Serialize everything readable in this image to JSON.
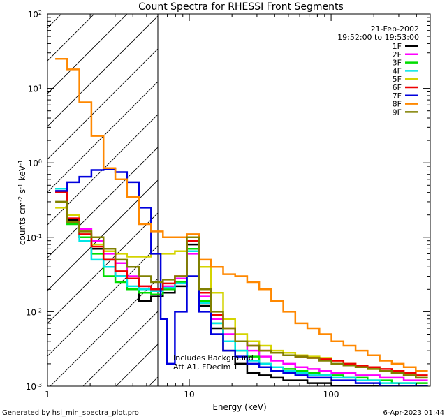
{
  "chart_data": {
    "type": "line",
    "title": "Count Spectra for RHESSI Front Segments",
    "xlabel": "Energy (keV)",
    "ylabel": "counts cm",
    "ylabel_sup1": "-2",
    "ylabel_mid": " s",
    "ylabel_sup2": "-1",
    "ylabel_end": " keV",
    "ylabel_sup3": "-1",
    "xscale": "log",
    "yscale": "log",
    "xlim": [
      1,
      500
    ],
    "ylim": [
      0.001,
      100
    ],
    "x_ticks": [
      {
        "value": 1,
        "label": "1"
      },
      {
        "value": 10,
        "label": "10"
      },
      {
        "value": 100,
        "label": "100"
      }
    ],
    "y_ticks": [
      {
        "value": 0.001,
        "base": "10",
        "exp": "-3"
      },
      {
        "value": 0.01,
        "base": "10",
        "exp": "-2"
      },
      {
        "value": 0.1,
        "base": "10",
        "exp": "-1"
      },
      {
        "value": 1,
        "base": "10",
        "exp": "0"
      },
      {
        "value": 10,
        "base": "10",
        "exp": "1"
      },
      {
        "value": 100,
        "base": "10",
        "exp": "2"
      }
    ],
    "date": "21-Feb-2002",
    "time_range": "19:52:00 to 19:53:00",
    "threshold_energy_kev": 6,
    "hatched_below_threshold": true,
    "annotation_line1": "Includes Background",
    "annotation_line2": "Att A1, FDecim 1",
    "series": [
      {
        "name": "1F",
        "color": "#000000",
        "data": [
          [
            1.25,
            0.4
          ],
          [
            1.52,
            0.17
          ],
          [
            1.85,
            0.1
          ],
          [
            2.25,
            0.07
          ],
          [
            2.74,
            0.05
          ],
          [
            3.3,
            0.03
          ],
          [
            4.0,
            0.02
          ],
          [
            4.9,
            0.014
          ],
          [
            5.9,
            0.016
          ],
          [
            7.2,
            0.018
          ],
          [
            8.7,
            0.022
          ],
          [
            10.6,
            0.08
          ],
          [
            12.9,
            0.012
          ],
          [
            15.7,
            0.006
          ],
          [
            19.1,
            0.003
          ],
          [
            23.2,
            0.002
          ],
          [
            28.2,
            0.0015
          ],
          [
            34.3,
            0.0014
          ],
          [
            41.7,
            0.0013
          ],
          [
            50.7,
            0.0012
          ],
          [
            61.7,
            0.0012
          ],
          [
            75,
            0.0011
          ],
          [
            91.2,
            0.0011
          ],
          [
            110.9,
            0.001
          ],
          [
            134.9,
            0.001
          ],
          [
            164,
            0.001
          ],
          [
            199.5,
            0.001
          ],
          [
            242.6,
            0.001
          ],
          [
            295,
            0.001
          ],
          [
            358.7,
            0.001
          ],
          [
            436.2,
            0.001
          ]
        ]
      },
      {
        "name": "2F",
        "color": "#ff00ff",
        "data": [
          [
            1.25,
            0.4
          ],
          [
            1.52,
            0.18
          ],
          [
            1.85,
            0.13
          ],
          [
            2.25,
            0.09
          ],
          [
            2.74,
            0.06
          ],
          [
            3.3,
            0.045
          ],
          [
            4.0,
            0.03
          ],
          [
            4.9,
            0.022
          ],
          [
            5.9,
            0.02
          ],
          [
            7.2,
            0.022
          ],
          [
            8.7,
            0.028
          ],
          [
            10.6,
            0.06
          ],
          [
            12.9,
            0.016
          ],
          [
            15.7,
            0.008
          ],
          [
            19.1,
            0.005
          ],
          [
            23.2,
            0.004
          ],
          [
            28.2,
            0.003
          ],
          [
            34.3,
            0.0025
          ],
          [
            41.7,
            0.0022
          ],
          [
            50.7,
            0.002
          ],
          [
            61.7,
            0.0018
          ],
          [
            75,
            0.0017
          ],
          [
            91.2,
            0.0016
          ],
          [
            110.9,
            0.0015
          ],
          [
            134.9,
            0.0015
          ],
          [
            164,
            0.0014
          ],
          [
            199.5,
            0.0014
          ],
          [
            242.6,
            0.0013
          ],
          [
            295,
            0.0013
          ],
          [
            358.7,
            0.0012
          ],
          [
            436.2,
            0.0012
          ]
        ]
      },
      {
        "name": "3F",
        "color": "#00dd00",
        "data": [
          [
            1.25,
            0.45
          ],
          [
            1.52,
            0.15
          ],
          [
            1.85,
            0.1
          ],
          [
            2.25,
            0.06
          ],
          [
            2.74,
            0.03
          ],
          [
            3.3,
            0.025
          ],
          [
            4.0,
            0.02
          ],
          [
            4.9,
            0.018
          ],
          [
            5.9,
            0.017
          ],
          [
            7.2,
            0.02
          ],
          [
            8.7,
            0.025
          ],
          [
            10.6,
            0.07
          ],
          [
            12.9,
            0.014
          ],
          [
            15.7,
            0.007
          ],
          [
            19.1,
            0.004
          ],
          [
            23.2,
            0.003
          ],
          [
            28.2,
            0.0025
          ],
          [
            34.3,
            0.002
          ],
          [
            41.7,
            0.0018
          ],
          [
            50.7,
            0.0017
          ],
          [
            61.7,
            0.0016
          ],
          [
            75,
            0.0015
          ],
          [
            91.2,
            0.0014
          ],
          [
            110.9,
            0.0014
          ],
          [
            134.9,
            0.0013
          ],
          [
            164,
            0.0013
          ],
          [
            199.5,
            0.0012
          ],
          [
            242.6,
            0.0012
          ],
          [
            295,
            0.0011
          ],
          [
            358.7,
            0.0011
          ],
          [
            436.2,
            0.0011
          ]
        ]
      },
      {
        "name": "4F",
        "color": "#00e5e5",
        "data": [
          [
            1.25,
            0.45
          ],
          [
            1.52,
            0.16
          ],
          [
            1.85,
            0.09
          ],
          [
            2.25,
            0.05
          ],
          [
            2.74,
            0.04
          ],
          [
            3.3,
            0.03
          ],
          [
            4.0,
            0.022
          ],
          [
            4.9,
            0.02
          ],
          [
            5.9,
            0.019
          ],
          [
            7.2,
            0.021
          ],
          [
            8.7,
            0.024
          ],
          [
            10.6,
            0.065
          ],
          [
            12.9,
            0.013
          ],
          [
            15.7,
            0.007
          ],
          [
            19.1,
            0.004
          ],
          [
            23.2,
            0.003
          ],
          [
            28.2,
            0.0022
          ],
          [
            34.3,
            0.002
          ],
          [
            41.7,
            0.0018
          ],
          [
            50.7,
            0.0016
          ],
          [
            61.7,
            0.0015
          ],
          [
            75,
            0.0014
          ],
          [
            91.2,
            0.0014
          ],
          [
            110.9,
            0.0013
          ],
          [
            134.9,
            0.0013
          ],
          [
            164,
            0.0012
          ],
          [
            199.5,
            0.0012
          ],
          [
            242.6,
            0.0011
          ],
          [
            295,
            0.0011
          ],
          [
            358.7,
            0.0011
          ],
          [
            436.2,
            0.001
          ]
        ]
      },
      {
        "name": "5F",
        "color": "#d4d400",
        "data": [
          [
            1.25,
            0.25
          ],
          [
            1.52,
            0.2
          ],
          [
            1.85,
            0.12
          ],
          [
            2.25,
            0.08
          ],
          [
            2.74,
            0.065
          ],
          [
            3.3,
            0.06
          ],
          [
            4.0,
            0.055
          ],
          [
            4.9,
            0.055
          ],
          [
            5.9,
            0.06
          ],
          [
            7.2,
            0.06
          ],
          [
            8.7,
            0.065
          ],
          [
            10.6,
            0.09
          ],
          [
            12.9,
            0.04
          ],
          [
            15.7,
            0.018
          ],
          [
            19.1,
            0.008
          ],
          [
            23.2,
            0.005
          ],
          [
            28.2,
            0.004
          ],
          [
            34.3,
            0.0035
          ],
          [
            41.7,
            0.003
          ],
          [
            50.7,
            0.0028
          ],
          [
            61.7,
            0.0026
          ],
          [
            75,
            0.0025
          ],
          [
            91.2,
            0.0024
          ],
          [
            110.9,
            0.0022
          ],
          [
            134.9,
            0.002
          ],
          [
            164,
            0.0018
          ],
          [
            199.5,
            0.0017
          ],
          [
            242.6,
            0.0016
          ],
          [
            295,
            0.0015
          ],
          [
            358.7,
            0.0014
          ],
          [
            436.2,
            0.0013
          ]
        ]
      },
      {
        "name": "6F",
        "color": "#ee0000",
        "data": [
          [
            1.25,
            0.4
          ],
          [
            1.52,
            0.18
          ],
          [
            1.85,
            0.11
          ],
          [
            2.25,
            0.075
          ],
          [
            2.74,
            0.05
          ],
          [
            3.3,
            0.035
          ],
          [
            4.0,
            0.028
          ],
          [
            4.9,
            0.022
          ],
          [
            5.9,
            0.02
          ],
          [
            7.2,
            0.024
          ],
          [
            8.7,
            0.03
          ],
          [
            10.6,
            0.09
          ],
          [
            12.9,
            0.018
          ],
          [
            15.7,
            0.009
          ],
          [
            19.1,
            0.006
          ],
          [
            23.2,
            0.004
          ],
          [
            28.2,
            0.0035
          ],
          [
            34.3,
            0.003
          ],
          [
            41.7,
            0.0028
          ],
          [
            50.7,
            0.0026
          ],
          [
            61.7,
            0.0025
          ],
          [
            75,
            0.0024
          ],
          [
            91.2,
            0.0023
          ],
          [
            110.9,
            0.0022
          ],
          [
            134.9,
            0.002
          ],
          [
            164,
            0.0019
          ],
          [
            199.5,
            0.0018
          ],
          [
            242.6,
            0.0017
          ],
          [
            295,
            0.0016
          ],
          [
            358.7,
            0.0015
          ],
          [
            436.2,
            0.0014
          ]
        ]
      },
      {
        "name": "7F",
        "color": "#0000dd",
        "data": [
          [
            1.25,
            0.42
          ],
          [
            1.52,
            0.55
          ],
          [
            1.85,
            0.65
          ],
          [
            2.25,
            0.8
          ],
          [
            2.74,
            0.83
          ],
          [
            3.3,
            0.75
          ],
          [
            4.0,
            0.55
          ],
          [
            4.9,
            0.25
          ],
          [
            5.9,
            0.06
          ],
          [
            6.7,
            0.008
          ],
          [
            7.2,
            0.002
          ],
          [
            8.7,
            0.01
          ],
          [
            10.6,
            0.03
          ],
          [
            12.9,
            0.01
          ],
          [
            15.7,
            0.005
          ],
          [
            19.1,
            0.003
          ],
          [
            23.2,
            0.0025
          ],
          [
            28.2,
            0.002
          ],
          [
            34.3,
            0.0018
          ],
          [
            41.7,
            0.0016
          ],
          [
            50.7,
            0.0015
          ],
          [
            61.7,
            0.0014
          ],
          [
            75,
            0.0013
          ],
          [
            91.2,
            0.0013
          ],
          [
            110.9,
            0.0012
          ],
          [
            134.9,
            0.0012
          ],
          [
            164,
            0.0011
          ],
          [
            199.5,
            0.0011
          ],
          [
            242.6,
            0.001
          ],
          [
            295,
            0.001
          ],
          [
            358.7,
            0.001
          ],
          [
            436.2,
            0.001
          ]
        ]
      },
      {
        "name": "8F",
        "color": "#ff8800",
        "data": [
          [
            1.25,
            25
          ],
          [
            1.52,
            18
          ],
          [
            1.85,
            6.5
          ],
          [
            2.25,
            2.3
          ],
          [
            2.74,
            0.85
          ],
          [
            3.3,
            0.6
          ],
          [
            4.0,
            0.35
          ],
          [
            4.9,
            0.15
          ],
          [
            5.9,
            0.12
          ],
          [
            7.2,
            0.1
          ],
          [
            8.7,
            0.1
          ],
          [
            10.6,
            0.11
          ],
          [
            12.9,
            0.05
          ],
          [
            15.7,
            0.04
          ],
          [
            19.1,
            0.032
          ],
          [
            23.2,
            0.03
          ],
          [
            28.2,
            0.025
          ],
          [
            34.3,
            0.02
          ],
          [
            41.7,
            0.014
          ],
          [
            50.7,
            0.01
          ],
          [
            61.7,
            0.007
          ],
          [
            75,
            0.006
          ],
          [
            91.2,
            0.005
          ],
          [
            110.9,
            0.004
          ],
          [
            134.9,
            0.0035
          ],
          [
            164,
            0.003
          ],
          [
            199.5,
            0.0026
          ],
          [
            242.6,
            0.0022
          ],
          [
            295,
            0.002
          ],
          [
            358.7,
            0.0018
          ],
          [
            436.2,
            0.0016
          ]
        ]
      },
      {
        "name": "9F",
        "color": "#808000",
        "data": [
          [
            1.25,
            0.3
          ],
          [
            1.52,
            0.16
          ],
          [
            1.85,
            0.12
          ],
          [
            2.25,
            0.1
          ],
          [
            2.74,
            0.07
          ],
          [
            3.3,
            0.05
          ],
          [
            4.0,
            0.04
          ],
          [
            4.9,
            0.03
          ],
          [
            5.9,
            0.025
          ],
          [
            7.2,
            0.027
          ],
          [
            8.7,
            0.03
          ],
          [
            10.6,
            0.1
          ],
          [
            12.9,
            0.02
          ],
          [
            15.7,
            0.01
          ],
          [
            19.1,
            0.006
          ],
          [
            23.2,
            0.004
          ],
          [
            28.2,
            0.0035
          ],
          [
            34.3,
            0.003
          ],
          [
            41.7,
            0.0028
          ],
          [
            50.7,
            0.0026
          ],
          [
            61.7,
            0.0025
          ],
          [
            75,
            0.0024
          ],
          [
            91.2,
            0.0022
          ],
          [
            110.9,
            0.002
          ],
          [
            134.9,
            0.0019
          ],
          [
            164,
            0.0018
          ],
          [
            199.5,
            0.0017
          ],
          [
            242.6,
            0.0016
          ],
          [
            295,
            0.0015
          ],
          [
            358.7,
            0.0014
          ],
          [
            436.2,
            0.0013
          ]
        ]
      }
    ]
  },
  "footer": {
    "generated_by": "Generated by hsi_min_spectra_plot.pro",
    "timestamp": "6-Apr-2023 01:44"
  }
}
